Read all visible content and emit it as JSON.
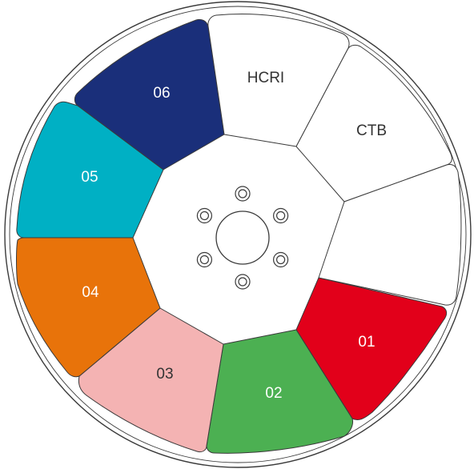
{
  "wheel": {
    "segments": [
      {
        "id": "seg-01",
        "label": "01",
        "fill": "#e2001a",
        "text_color": "#ffffff"
      },
      {
        "id": "seg-02",
        "label": "02",
        "fill": "#4cb052",
        "text_color": "#ffffff"
      },
      {
        "id": "seg-03",
        "label": "03",
        "fill": "#f4b3b3",
        "text_color": "#333333"
      },
      {
        "id": "seg-04",
        "label": "04",
        "fill": "#e8730a",
        "text_color": "#ffffff"
      },
      {
        "id": "seg-05",
        "label": "05",
        "fill": "#00b0c4",
        "text_color": "#ffffff"
      },
      {
        "id": "seg-06",
        "label": "06",
        "fill": "#1a2f7a",
        "text_color": "#ffffff"
      },
      {
        "id": "seg-hcri",
        "label": "HCRI",
        "fill": "#ffffff",
        "text_color": "#333333"
      },
      {
        "id": "seg-ctb",
        "label": "CTB",
        "fill": "#ffffff",
        "text_color": "#333333"
      },
      {
        "id": "seg-open",
        "label": "",
        "fill": "#ffffff",
        "text_color": "#333333"
      }
    ],
    "hub": {
      "screw_count": 6
    }
  }
}
